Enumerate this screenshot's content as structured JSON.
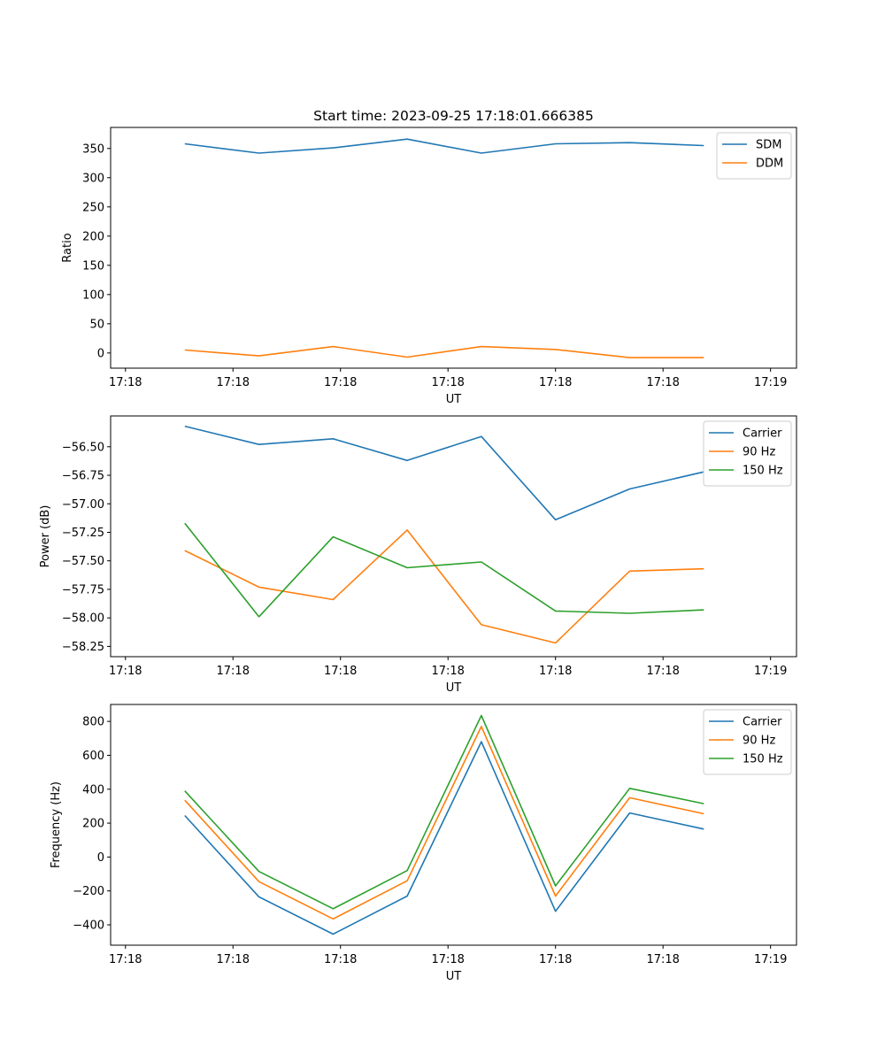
{
  "figure_title": "Start time: 2023-09-25 17:18:01.666385",
  "chart_data": [
    {
      "type": "line",
      "title": "Start time: 2023-09-25 17:18:01.666385",
      "xlabel": "UT",
      "ylabel": "Ratio",
      "x_tick_labels": [
        "17:18",
        "17:18",
        "17:18",
        "17:18",
        "17:18",
        "17:18",
        "17:19"
      ],
      "x": [
        1,
        2,
        3,
        4,
        5,
        6,
        7,
        8
      ],
      "xlim": [
        0,
        9.25
      ],
      "ylim": [
        -26,
        386
      ],
      "yticks": [
        0,
        50,
        100,
        150,
        200,
        250,
        300,
        350
      ],
      "legend_loc": "top-right",
      "series": [
        {
          "name": "SDM",
          "color": "#1f77b4",
          "values": [
            358,
            342,
            351,
            366,
            342,
            358,
            360,
            355
          ]
        },
        {
          "name": "DDM",
          "color": "#ff7f0e",
          "values": [
            5,
            -5,
            11,
            -7,
            11,
            6,
            -8,
            -8
          ]
        }
      ]
    },
    {
      "type": "line",
      "title": "",
      "xlabel": "UT",
      "ylabel": "Power (dB)",
      "x_tick_labels": [
        "17:18",
        "17:18",
        "17:18",
        "17:18",
        "17:18",
        "17:18",
        "17:19"
      ],
      "x": [
        1,
        2,
        3,
        4,
        5,
        6,
        7,
        8
      ],
      "xlim": [
        0,
        9.25
      ],
      "ylim": [
        -58.34,
        -56.23
      ],
      "yticks": [
        -58.25,
        -58.0,
        -57.75,
        -57.5,
        -57.25,
        -57.0,
        -56.75,
        -56.5
      ],
      "ytick_labels": [
        "−58.25",
        "−58.00",
        "−57.75",
        "−57.50",
        "−57.25",
        "−57.00",
        "−56.75",
        "−56.50"
      ],
      "legend_loc": "top-right",
      "series": [
        {
          "name": "Carrier",
          "color": "#1f77b4",
          "values": [
            -56.32,
            -56.48,
            -56.43,
            -56.62,
            -56.41,
            -57.14,
            -56.87,
            -56.72
          ]
        },
        {
          "name": "90 Hz",
          "color": "#ff7f0e",
          "values": [
            -57.41,
            -57.73,
            -57.84,
            -57.23,
            -58.06,
            -58.22,
            -57.59,
            -57.57
          ]
        },
        {
          "name": "150 Hz",
          "color": "#2ca02c",
          "values": [
            -57.17,
            -57.99,
            -57.29,
            -57.56,
            -57.51,
            -57.94,
            -57.96,
            -57.93
          ]
        }
      ]
    },
    {
      "type": "line",
      "title": "",
      "xlabel": "UT",
      "ylabel": "Frequency (Hz)",
      "x_tick_labels": [
        "17:18",
        "17:18",
        "17:18",
        "17:18",
        "17:18",
        "17:18",
        "17:19"
      ],
      "x": [
        1,
        2,
        3,
        4,
        5,
        6,
        7,
        8
      ],
      "xlim": [
        0,
        9.25
      ],
      "ylim": [
        -520,
        900
      ],
      "yticks": [
        -400,
        -200,
        0,
        200,
        400,
        600,
        800
      ],
      "ytick_labels": [
        "−400",
        "−200",
        "0",
        "200",
        "400",
        "600",
        "800"
      ],
      "legend_loc": "top-right",
      "series": [
        {
          "name": "Carrier",
          "color": "#1f77b4",
          "values": [
            245,
            -235,
            -455,
            -230,
            680,
            -320,
            260,
            165
          ]
        },
        {
          "name": "90 Hz",
          "color": "#ff7f0e",
          "values": [
            335,
            -145,
            -365,
            -140,
            770,
            -230,
            350,
            255
          ]
        },
        {
          "name": "150 Hz",
          "color": "#2ca02c",
          "values": [
            390,
            -85,
            -305,
            -80,
            835,
            -170,
            405,
            315
          ]
        }
      ]
    }
  ]
}
